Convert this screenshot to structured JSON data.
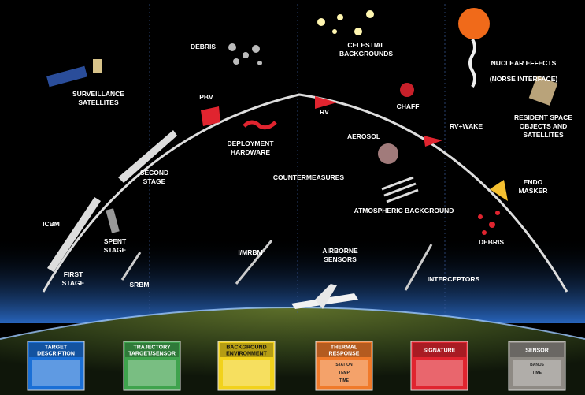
{
  "labels": [
    {
      "lines": [
        "SURVEILLANCE",
        "SATELLITES"
      ]
    },
    {
      "lines": [
        "DEBRIS"
      ]
    },
    {
      "lines": [
        "CELESTIAL",
        "BACKGROUNDS"
      ]
    },
    {
      "lines": [
        "NUCLEAR EFFECTS"
      ]
    },
    {
      "lines": [
        "(NORSE INTERFACE)"
      ]
    },
    {
      "lines": [
        "PBV"
      ]
    },
    {
      "lines": [
        "RV"
      ]
    },
    {
      "lines": [
        "CHAFF"
      ]
    },
    {
      "lines": [
        "RV+WAKE"
      ]
    },
    {
      "lines": [
        "RESIDENT SPACE",
        "OBJECTS AND",
        "SATELLITES"
      ]
    },
    {
      "lines": [
        "DEPLOYMENT",
        "HARDWARE"
      ]
    },
    {
      "lines": [
        "AEROSOL"
      ]
    },
    {
      "lines": [
        "SECOND",
        "STAGE"
      ]
    },
    {
      "lines": [
        "COUNTERMEASURES"
      ]
    },
    {
      "lines": [
        "ENDO",
        "MASKER"
      ]
    },
    {
      "lines": [
        "ATMOSPHERIC BACKGROUND"
      ]
    },
    {
      "lines": [
        "ICBM"
      ]
    },
    {
      "lines": [
        "SPENT",
        "STAGE"
      ]
    },
    {
      "lines": [
        "I/MRBM"
      ]
    },
    {
      "lines": [
        "AIRBORNE",
        "SENSORS"
      ]
    },
    {
      "lines": [
        "INTERCEPTORS"
      ]
    },
    {
      "lines": [
        "DEBRIS"
      ]
    },
    {
      "lines": [
        "FIRST",
        "STAGE"
      ]
    },
    {
      "lines": [
        "SRBM"
      ]
    }
  ],
  "panels": [
    {
      "title": [
        "TARGET",
        "DESCRIPTION"
      ],
      "color": "#1a6fd6",
      "ink": "#fff",
      "small": []
    },
    {
      "title": [
        "TRAJECTORY",
        "TARGET/SENSOR"
      ],
      "color": "#3fa34d",
      "ink": "#fff",
      "small": []
    },
    {
      "title": [
        "BACKGROUND",
        "ENVIRONMENT"
      ],
      "color": "#f2d21b",
      "ink": "#111",
      "small": []
    },
    {
      "title": [
        "THERMAL",
        "RESPONSE"
      ],
      "color": "#f07a2a",
      "ink": "#fff",
      "small": [
        "STATION",
        "TEMP",
        "TIME"
      ]
    },
    {
      "title": [
        "SIGNATURE"
      ],
      "color": "#e0242f",
      "ink": "#fff",
      "small": []
    },
    {
      "title": [
        "SENSOR"
      ],
      "color": "#8e8a84",
      "ink": "#fff",
      "small": [
        "BANDS",
        "TIME"
      ]
    }
  ]
}
